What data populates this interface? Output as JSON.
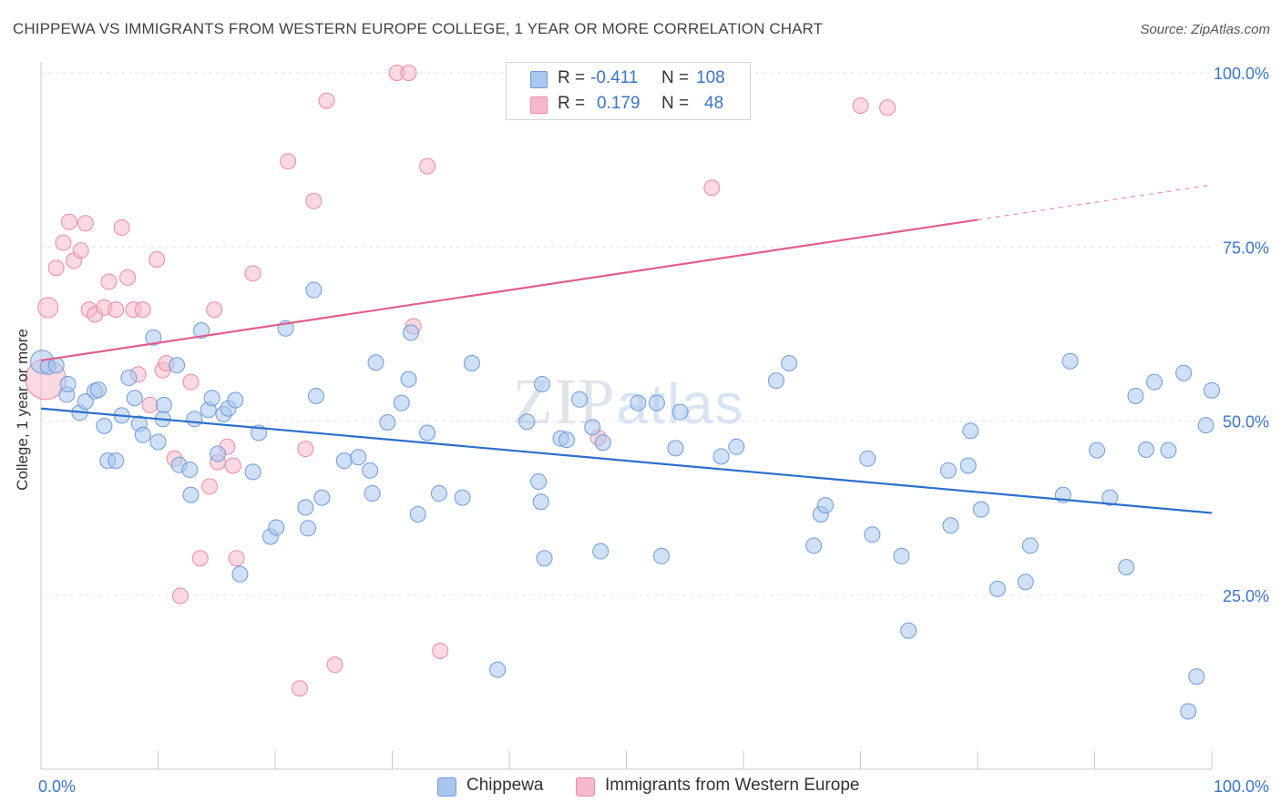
{
  "title": "CHIPPEWA VS IMMIGRANTS FROM WESTERN EUROPE COLLEGE, 1 YEAR OR MORE CORRELATION CHART",
  "source": "Source: ZipAtlas.com",
  "watermark": "ZIPatlas",
  "colors": {
    "blue_fill": "#a9c6ef",
    "blue_stroke": "#6f9bd8",
    "blue_line": "#2c6fca",
    "pink_fill": "#f6b9cb",
    "pink_stroke": "#e98aa6",
    "pink_line": "#e05f8c",
    "tick_text": "#3a74c8",
    "grid": "#e3e3e3"
  },
  "legend": {
    "rows": [
      {
        "r_label": "R =",
        "r_value": "-0.411",
        "n_label": "N =",
        "n_value": "108",
        "color": "#a9c6ef"
      },
      {
        "r_label": "R =",
        "r_value": "0.179",
        "n_label": "N =",
        "n_value": "48",
        "color": "#f6b9cb"
      }
    ]
  },
  "bottom_legend": {
    "items": [
      {
        "label": "Chippewa",
        "color": "#a9c6ef"
      },
      {
        "label": "Immigrants from Western Europe",
        "color": "#f6b9cb"
      }
    ]
  },
  "chart_data": {
    "type": "scatter",
    "title": "CHIPPEWA VS IMMIGRANTS FROM WESTERN EUROPE COLLEGE, 1 YEAR OR MORE CORRELATION CHART",
    "xlabel": "",
    "ylabel": "College, 1 year or more",
    "xlim": [
      0,
      100
    ],
    "ylim": [
      0,
      100
    ],
    "x_tick_labels": [
      "0.0%",
      "100.0%"
    ],
    "y_tick_labels": [
      "25.0%",
      "50.0%",
      "75.0%",
      "100.0%"
    ],
    "y_ticks": [
      25,
      50,
      75,
      100
    ],
    "grid": true,
    "legend_position": "top-center",
    "series": [
      {
        "name": "Chippewa",
        "color": "#a9c6ef",
        "r": -0.411,
        "n": 108,
        "trend": {
          "x": [
            0,
            100
          ],
          "y": [
            51.8,
            36.8
          ]
        },
        "points": [
          [
            0.1,
            58.5,
            1.5
          ],
          [
            0.6,
            57.8,
            1
          ],
          [
            1.3,
            58.0,
            1
          ],
          [
            2.2,
            53.8,
            1
          ],
          [
            2.3,
            55.3,
            1
          ],
          [
            3.3,
            51.2,
            1
          ],
          [
            3.8,
            52.8,
            1
          ],
          [
            4.6,
            54.3,
            1
          ],
          [
            4.9,
            54.5,
            1
          ],
          [
            5.4,
            49.3,
            1
          ],
          [
            5.7,
            44.3,
            1
          ],
          [
            6.4,
            44.3,
            1
          ],
          [
            6.9,
            50.8,
            1
          ],
          [
            7.5,
            56.2,
            1
          ],
          [
            8.0,
            53.3,
            1
          ],
          [
            8.4,
            49.6,
            1
          ],
          [
            8.7,
            48.0,
            1
          ],
          [
            9.6,
            62.0,
            1
          ],
          [
            10.0,
            47.0,
            1
          ],
          [
            10.4,
            50.3,
            1
          ],
          [
            10.5,
            52.3,
            1
          ],
          [
            11.6,
            58.0,
            1
          ],
          [
            11.8,
            43.7,
            1
          ],
          [
            12.7,
            43.0,
            1
          ],
          [
            12.8,
            39.4,
            1
          ],
          [
            13.1,
            50.3,
            1
          ],
          [
            13.7,
            63.0,
            1
          ],
          [
            14.3,
            51.6,
            1
          ],
          [
            14.6,
            53.3,
            1
          ],
          [
            15.1,
            45.3,
            1
          ],
          [
            15.6,
            51.0,
            1
          ],
          [
            16.0,
            51.8,
            1
          ],
          [
            16.6,
            53.0,
            1
          ],
          [
            17.0,
            28.0,
            1
          ],
          [
            18.1,
            42.7,
            1
          ],
          [
            18.6,
            48.3,
            1
          ],
          [
            19.6,
            33.4,
            1
          ],
          [
            20.1,
            34.7,
            1
          ],
          [
            20.9,
            63.3,
            1
          ],
          [
            22.6,
            37.6,
            1
          ],
          [
            22.8,
            34.6,
            1
          ],
          [
            23.3,
            68.8,
            1
          ],
          [
            23.5,
            53.6,
            1
          ],
          [
            24.0,
            39.0,
            1
          ],
          [
            25.9,
            44.3,
            1
          ],
          [
            27.1,
            44.8,
            1
          ],
          [
            28.1,
            42.9,
            1
          ],
          [
            28.3,
            39.6,
            1
          ],
          [
            28.6,
            58.4,
            1
          ],
          [
            29.6,
            49.8,
            1
          ],
          [
            30.8,
            52.6,
            1
          ],
          [
            31.4,
            56.0,
            1
          ],
          [
            31.6,
            62.7,
            1
          ],
          [
            32.2,
            36.6,
            1
          ],
          [
            33.0,
            48.3,
            1
          ],
          [
            34.0,
            39.6,
            1
          ],
          [
            36.0,
            39.0,
            1
          ],
          [
            36.8,
            58.3,
            1
          ],
          [
            39.0,
            14.3,
            1
          ],
          [
            41.5,
            49.9,
            1
          ],
          [
            42.8,
            55.3,
            1
          ],
          [
            42.5,
            41.3,
            1
          ],
          [
            42.7,
            38.4,
            1
          ],
          [
            43.0,
            30.3,
            1
          ],
          [
            44.4,
            47.5,
            1
          ],
          [
            44.9,
            47.3,
            1
          ],
          [
            46.0,
            53.1,
            1
          ],
          [
            47.1,
            49.1,
            1
          ],
          [
            47.8,
            31.3,
            1
          ],
          [
            48.0,
            46.9,
            1
          ],
          [
            51.0,
            52.6,
            1
          ],
          [
            52.6,
            52.6,
            1
          ],
          [
            53.0,
            30.6,
            1
          ],
          [
            54.6,
            51.3,
            1
          ],
          [
            54.2,
            46.1,
            1
          ],
          [
            58.1,
            44.9,
            1
          ],
          [
            59.4,
            46.3,
            1
          ],
          [
            62.8,
            55.8,
            1
          ],
          [
            63.9,
            58.3,
            1
          ],
          [
            66.0,
            32.1,
            1
          ],
          [
            66.6,
            36.6,
            1
          ],
          [
            67.0,
            37.9,
            1
          ],
          [
            70.6,
            44.6,
            1
          ],
          [
            71.0,
            33.7,
            1
          ],
          [
            73.5,
            30.6,
            1
          ],
          [
            74.1,
            19.9,
            1
          ],
          [
            77.5,
            42.9,
            1
          ],
          [
            77.7,
            35.0,
            1
          ],
          [
            79.2,
            43.6,
            1
          ],
          [
            79.4,
            48.6,
            1
          ],
          [
            80.3,
            37.3,
            1
          ],
          [
            81.7,
            25.9,
            1
          ],
          [
            84.1,
            26.9,
            1
          ],
          [
            84.5,
            32.1,
            1
          ],
          [
            87.3,
            39.4,
            1
          ],
          [
            87.9,
            58.6,
            1
          ],
          [
            90.2,
            45.8,
            1
          ],
          [
            91.3,
            39.0,
            1
          ],
          [
            92.7,
            29.0,
            1
          ],
          [
            93.5,
            53.6,
            1
          ],
          [
            94.4,
            45.9,
            1
          ],
          [
            95.1,
            55.6,
            1
          ],
          [
            96.3,
            45.8,
            1
          ],
          [
            97.6,
            56.9,
            1
          ],
          [
            98.7,
            13.3,
            1
          ],
          [
            99.5,
            49.4,
            1
          ],
          [
            98.0,
            8.3,
            1
          ],
          [
            100.0,
            54.4,
            1
          ]
        ]
      },
      {
        "name": "Immigrants from Western Europe",
        "color": "#f6b9cb",
        "r": 0.179,
        "n": 48,
        "trend": {
          "x": [
            0,
            80,
            100
          ],
          "y": [
            58.7,
            78.9,
            83.9
          ],
          "solid_until": 80
        },
        "points": [
          [
            0.4,
            56.0,
            2.6
          ],
          [
            0.6,
            66.3,
            1.3
          ],
          [
            1.3,
            72.0,
            1
          ],
          [
            1.9,
            75.6,
            1
          ],
          [
            2.4,
            78.6,
            1
          ],
          [
            2.8,
            73.0,
            1
          ],
          [
            3.4,
            74.5,
            1
          ],
          [
            3.8,
            78.4,
            1
          ],
          [
            4.1,
            66.0,
            1
          ],
          [
            4.6,
            65.3,
            1
          ],
          [
            5.4,
            66.3,
            1
          ],
          [
            5.8,
            70.0,
            1
          ],
          [
            6.4,
            66.0,
            1
          ],
          [
            6.9,
            77.8,
            1
          ],
          [
            7.4,
            70.6,
            1
          ],
          [
            7.9,
            66.0,
            1
          ],
          [
            8.3,
            56.7,
            1
          ],
          [
            8.7,
            66.0,
            1
          ],
          [
            9.3,
            52.3,
            1
          ],
          [
            9.9,
            73.2,
            1
          ],
          [
            10.4,
            57.3,
            1
          ],
          [
            10.7,
            58.3,
            1
          ],
          [
            11.4,
            44.6,
            1
          ],
          [
            11.9,
            24.9,
            1
          ],
          [
            12.8,
            55.6,
            1
          ],
          [
            13.6,
            30.3,
            1
          ],
          [
            14.4,
            40.6,
            1
          ],
          [
            14.8,
            66.0,
            1
          ],
          [
            15.1,
            44.1,
            1
          ],
          [
            15.9,
            46.3,
            1
          ],
          [
            16.4,
            43.6,
            1
          ],
          [
            16.7,
            30.3,
            1
          ],
          [
            18.1,
            71.2,
            1
          ],
          [
            21.1,
            87.3,
            1
          ],
          [
            22.1,
            11.6,
            1
          ],
          [
            22.6,
            46.0,
            1
          ],
          [
            23.3,
            81.6,
            1
          ],
          [
            24.4,
            96.0,
            1
          ],
          [
            25.1,
            15.0,
            1
          ],
          [
            30.4,
            100.0,
            1
          ],
          [
            31.4,
            100.0,
            1
          ],
          [
            31.8,
            63.6,
            1
          ],
          [
            33.0,
            86.6,
            1
          ],
          [
            34.1,
            17.0,
            1
          ],
          [
            47.6,
            47.6,
            1
          ],
          [
            57.3,
            83.5,
            1
          ],
          [
            70.0,
            95.3,
            1
          ],
          [
            72.3,
            95.0,
            1
          ]
        ]
      }
    ]
  }
}
